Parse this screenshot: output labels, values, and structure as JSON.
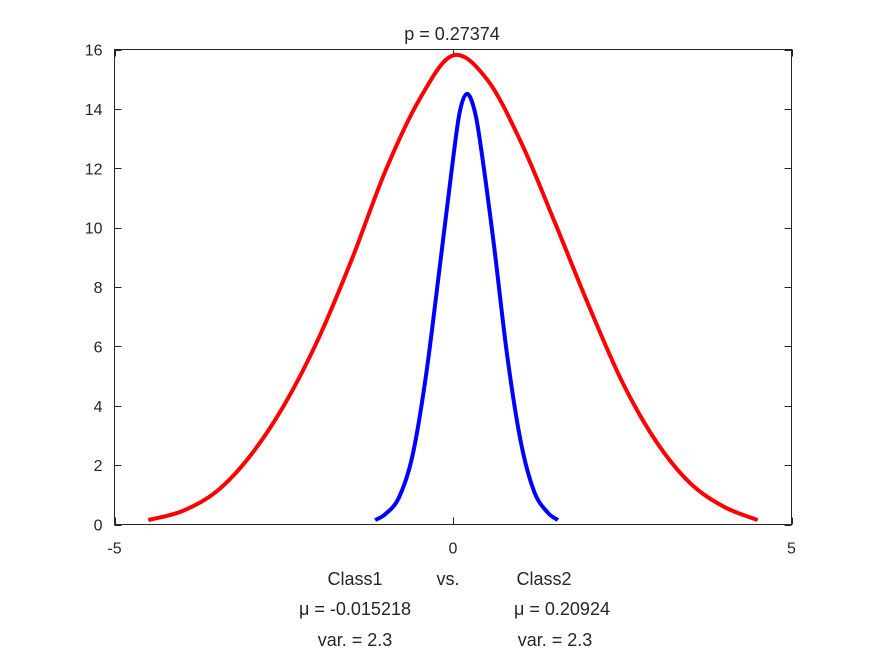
{
  "chart_data": {
    "type": "line",
    "title": "p = 0.27374",
    "xlabel": "",
    "ylabel": "",
    "xlim": [
      -5,
      5
    ],
    "ylim": [
      0,
      16
    ],
    "x_ticks": [
      -5,
      0,
      5
    ],
    "y_ticks": [
      0,
      2,
      4,
      6,
      8,
      10,
      12,
      14,
      16
    ],
    "grid": false,
    "series": [
      {
        "color": "#ff0000",
        "x": [
          -4.5,
          -4.0,
          -3.5,
          -3.0,
          -2.5,
          -2.0,
          -1.5,
          -1.0,
          -0.5,
          0.0,
          0.5,
          1.0,
          1.5,
          2.0,
          2.5,
          3.0,
          3.5,
          4.0,
          4.5
        ],
        "y": [
          0.15,
          0.45,
          1.1,
          2.3,
          4.0,
          6.2,
          8.9,
          11.9,
          14.3,
          15.8,
          15.0,
          12.9,
          10.2,
          7.4,
          4.8,
          2.8,
          1.4,
          0.6,
          0.15
        ]
      },
      {
        "color": "#0000ff",
        "x": [
          -1.15,
          -1.0,
          -0.8,
          -0.6,
          -0.4,
          -0.2,
          0.0,
          0.1,
          0.2,
          0.3,
          0.4,
          0.6,
          0.8,
          1.0,
          1.2,
          1.4,
          1.55
        ],
        "y": [
          0.15,
          0.35,
          0.9,
          2.3,
          5.0,
          8.6,
          12.3,
          13.9,
          14.5,
          14.1,
          12.9,
          9.5,
          5.7,
          2.8,
          1.1,
          0.4,
          0.15
        ]
      }
    ],
    "annotations": {
      "class1_label": "Class1",
      "vs_label": "vs.",
      "class2_label": "Class2",
      "class1_mu": "μ = -0.015218",
      "class2_mu": "μ = 0.20924",
      "class1_var": "var. = 2.3",
      "class2_var": "var. = 2.3"
    }
  }
}
